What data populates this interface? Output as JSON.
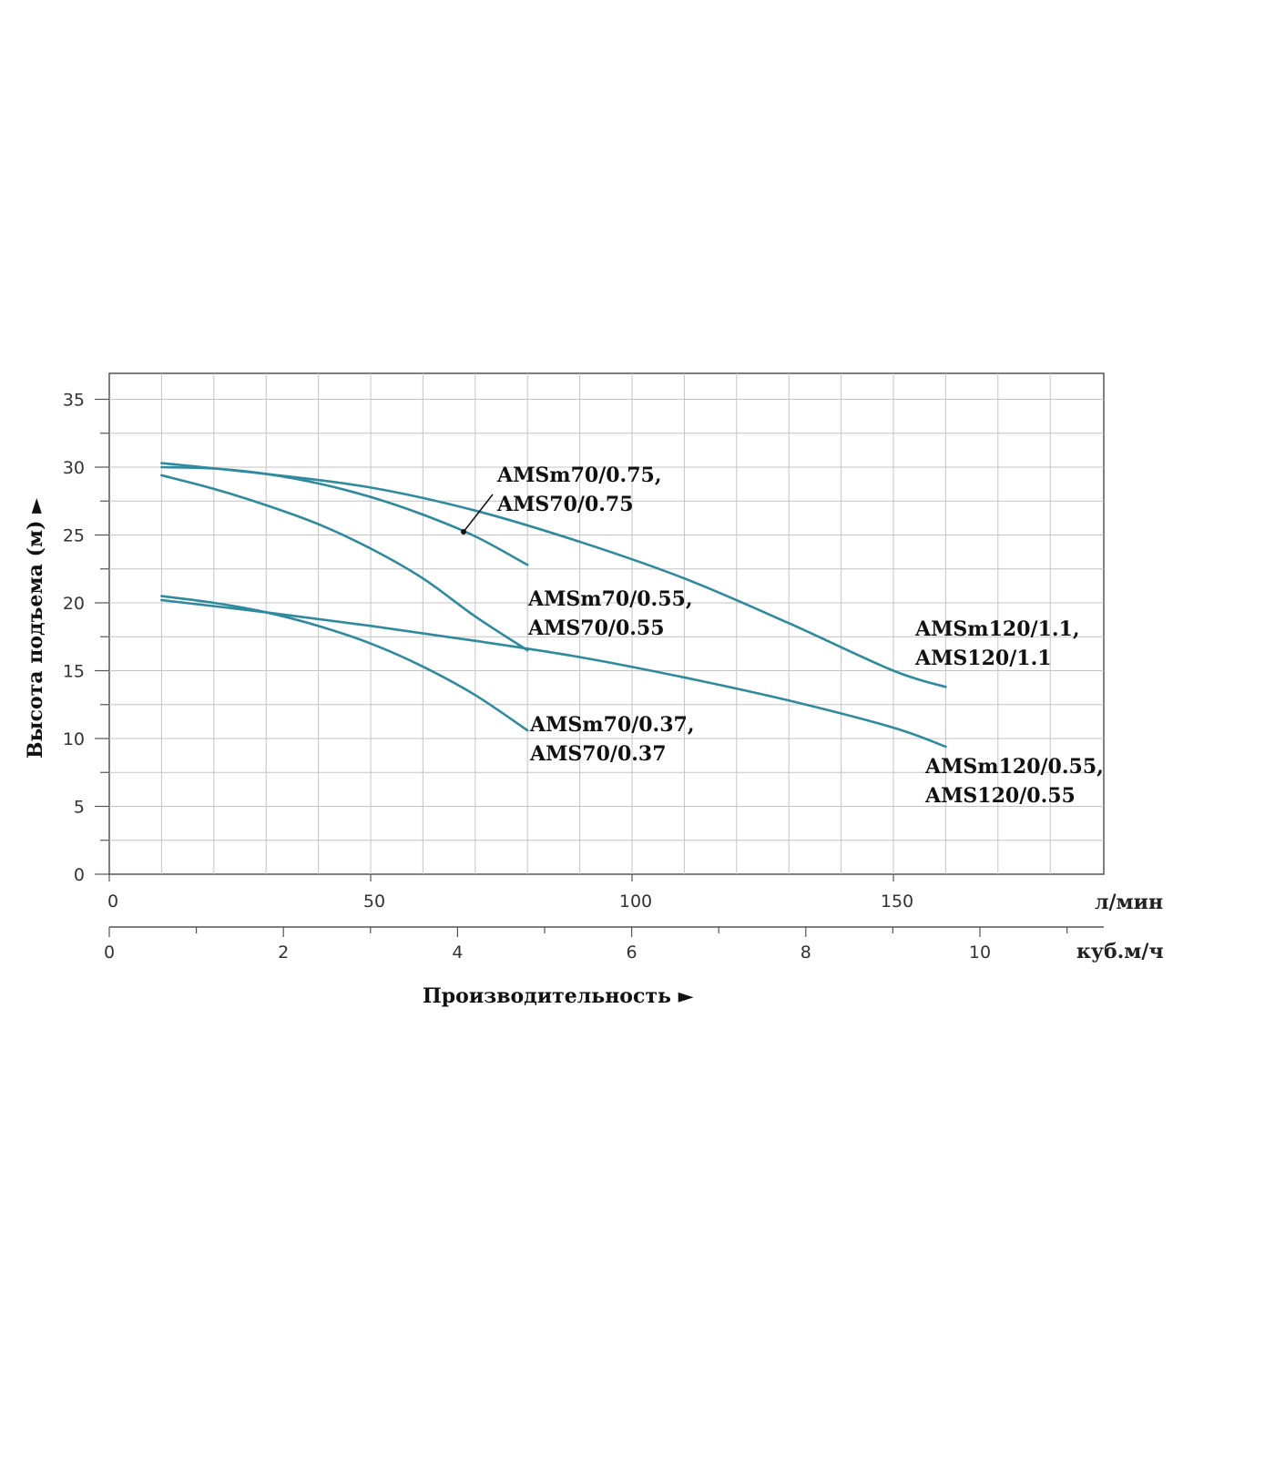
{
  "chart_data": {
    "type": "line",
    "title": "",
    "ylabel": "Высота подъема (м) ►",
    "xlabel": "Производительность ►",
    "x_unit_primary": "л/мин",
    "x_unit_secondary": "куб.м/ч",
    "xlim": [
      0,
      190
    ],
    "ylim": [
      0,
      37
    ],
    "y_ticks": [
      0,
      5,
      10,
      15,
      20,
      25,
      30,
      35
    ],
    "x_ticks_primary": [
      0,
      50,
      100,
      150
    ],
    "x_ticks_secondary": [
      0,
      2,
      4,
      6,
      8,
      10
    ],
    "grid": true,
    "line_color": "#2e8a9c",
    "series": [
      {
        "label_lines": [
          "AMSm70/0.75,",
          "AMS70/0.75"
        ],
        "x": [
          10,
          20,
          30,
          40,
          50,
          60,
          70,
          80
        ],
        "y": [
          30.0,
          29.9,
          29.5,
          28.8,
          27.8,
          26.5,
          24.9,
          22.8
        ]
      },
      {
        "label_lines": [
          "AMSm70/0.55,",
          "AMS70/0.55"
        ],
        "x": [
          10,
          20,
          30,
          40,
          50,
          60,
          70,
          80
        ],
        "y": [
          29.4,
          28.4,
          27.2,
          25.8,
          24.0,
          21.8,
          19.0,
          16.5
        ]
      },
      {
        "label_lines": [
          "AMSm120/1.1,",
          "AMS120/1.1"
        ],
        "x": [
          10,
          30,
          50,
          70,
          90,
          110,
          130,
          150,
          160
        ],
        "y": [
          30.3,
          29.5,
          28.5,
          26.8,
          24.5,
          21.8,
          18.5,
          15.0,
          13.8
        ]
      },
      {
        "label_lines": [
          "AMSm70/0.37,",
          "AMS70/0.37"
        ],
        "x": [
          10,
          20,
          30,
          40,
          50,
          60,
          70,
          80
        ],
        "y": [
          20.5,
          20.0,
          19.3,
          18.3,
          17.0,
          15.3,
          13.2,
          10.6
        ]
      },
      {
        "label_lines": [
          "AMSm120/0.55,",
          "AMS120/0.55"
        ],
        "x": [
          10,
          30,
          50,
          70,
          90,
          110,
          130,
          150,
          160
        ],
        "y": [
          20.2,
          19.3,
          18.3,
          17.2,
          16.0,
          14.5,
          12.8,
          10.8,
          9.4
        ]
      }
    ]
  }
}
